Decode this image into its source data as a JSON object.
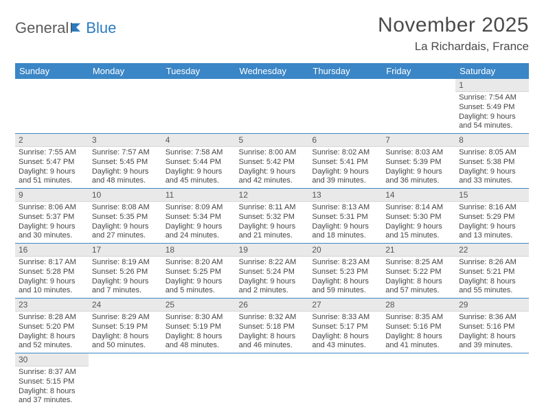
{
  "logo": {
    "text_general": "General",
    "text_blue": "Blue"
  },
  "title": "November 2025",
  "location": "La Richardais, France",
  "colors": {
    "header_bg": "#3b86c6",
    "header_text": "#ffffff",
    "daynum_bg": "#e9e9e9",
    "row_border": "#3b86c6",
    "logo_blue": "#2b7bbf",
    "text": "#3a3a3a"
  },
  "day_headers": [
    "Sunday",
    "Monday",
    "Tuesday",
    "Wednesday",
    "Thursday",
    "Friday",
    "Saturday"
  ],
  "weeks": [
    [
      {
        "empty": true
      },
      {
        "empty": true
      },
      {
        "empty": true
      },
      {
        "empty": true
      },
      {
        "empty": true
      },
      {
        "empty": true
      },
      {
        "n": "1",
        "sunrise": "Sunrise: 7:54 AM",
        "sunset": "Sunset: 5:49 PM",
        "daylight": "Daylight: 9 hours and 54 minutes."
      }
    ],
    [
      {
        "n": "2",
        "sunrise": "Sunrise: 7:55 AM",
        "sunset": "Sunset: 5:47 PM",
        "daylight": "Daylight: 9 hours and 51 minutes."
      },
      {
        "n": "3",
        "sunrise": "Sunrise: 7:57 AM",
        "sunset": "Sunset: 5:45 PM",
        "daylight": "Daylight: 9 hours and 48 minutes."
      },
      {
        "n": "4",
        "sunrise": "Sunrise: 7:58 AM",
        "sunset": "Sunset: 5:44 PM",
        "daylight": "Daylight: 9 hours and 45 minutes."
      },
      {
        "n": "5",
        "sunrise": "Sunrise: 8:00 AM",
        "sunset": "Sunset: 5:42 PM",
        "daylight": "Daylight: 9 hours and 42 minutes."
      },
      {
        "n": "6",
        "sunrise": "Sunrise: 8:02 AM",
        "sunset": "Sunset: 5:41 PM",
        "daylight": "Daylight: 9 hours and 39 minutes."
      },
      {
        "n": "7",
        "sunrise": "Sunrise: 8:03 AM",
        "sunset": "Sunset: 5:39 PM",
        "daylight": "Daylight: 9 hours and 36 minutes."
      },
      {
        "n": "8",
        "sunrise": "Sunrise: 8:05 AM",
        "sunset": "Sunset: 5:38 PM",
        "daylight": "Daylight: 9 hours and 33 minutes."
      }
    ],
    [
      {
        "n": "9",
        "sunrise": "Sunrise: 8:06 AM",
        "sunset": "Sunset: 5:37 PM",
        "daylight": "Daylight: 9 hours and 30 minutes."
      },
      {
        "n": "10",
        "sunrise": "Sunrise: 8:08 AM",
        "sunset": "Sunset: 5:35 PM",
        "daylight": "Daylight: 9 hours and 27 minutes."
      },
      {
        "n": "11",
        "sunrise": "Sunrise: 8:09 AM",
        "sunset": "Sunset: 5:34 PM",
        "daylight": "Daylight: 9 hours and 24 minutes."
      },
      {
        "n": "12",
        "sunrise": "Sunrise: 8:11 AM",
        "sunset": "Sunset: 5:32 PM",
        "daylight": "Daylight: 9 hours and 21 minutes."
      },
      {
        "n": "13",
        "sunrise": "Sunrise: 8:13 AM",
        "sunset": "Sunset: 5:31 PM",
        "daylight": "Daylight: 9 hours and 18 minutes."
      },
      {
        "n": "14",
        "sunrise": "Sunrise: 8:14 AM",
        "sunset": "Sunset: 5:30 PM",
        "daylight": "Daylight: 9 hours and 15 minutes."
      },
      {
        "n": "15",
        "sunrise": "Sunrise: 8:16 AM",
        "sunset": "Sunset: 5:29 PM",
        "daylight": "Daylight: 9 hours and 13 minutes."
      }
    ],
    [
      {
        "n": "16",
        "sunrise": "Sunrise: 8:17 AM",
        "sunset": "Sunset: 5:28 PM",
        "daylight": "Daylight: 9 hours and 10 minutes."
      },
      {
        "n": "17",
        "sunrise": "Sunrise: 8:19 AM",
        "sunset": "Sunset: 5:26 PM",
        "daylight": "Daylight: 9 hours and 7 minutes."
      },
      {
        "n": "18",
        "sunrise": "Sunrise: 8:20 AM",
        "sunset": "Sunset: 5:25 PM",
        "daylight": "Daylight: 9 hours and 5 minutes."
      },
      {
        "n": "19",
        "sunrise": "Sunrise: 8:22 AM",
        "sunset": "Sunset: 5:24 PM",
        "daylight": "Daylight: 9 hours and 2 minutes."
      },
      {
        "n": "20",
        "sunrise": "Sunrise: 8:23 AM",
        "sunset": "Sunset: 5:23 PM",
        "daylight": "Daylight: 8 hours and 59 minutes."
      },
      {
        "n": "21",
        "sunrise": "Sunrise: 8:25 AM",
        "sunset": "Sunset: 5:22 PM",
        "daylight": "Daylight: 8 hours and 57 minutes."
      },
      {
        "n": "22",
        "sunrise": "Sunrise: 8:26 AM",
        "sunset": "Sunset: 5:21 PM",
        "daylight": "Daylight: 8 hours and 55 minutes."
      }
    ],
    [
      {
        "n": "23",
        "sunrise": "Sunrise: 8:28 AM",
        "sunset": "Sunset: 5:20 PM",
        "daylight": "Daylight: 8 hours and 52 minutes."
      },
      {
        "n": "24",
        "sunrise": "Sunrise: 8:29 AM",
        "sunset": "Sunset: 5:19 PM",
        "daylight": "Daylight: 8 hours and 50 minutes."
      },
      {
        "n": "25",
        "sunrise": "Sunrise: 8:30 AM",
        "sunset": "Sunset: 5:19 PM",
        "daylight": "Daylight: 8 hours and 48 minutes."
      },
      {
        "n": "26",
        "sunrise": "Sunrise: 8:32 AM",
        "sunset": "Sunset: 5:18 PM",
        "daylight": "Daylight: 8 hours and 46 minutes."
      },
      {
        "n": "27",
        "sunrise": "Sunrise: 8:33 AM",
        "sunset": "Sunset: 5:17 PM",
        "daylight": "Daylight: 8 hours and 43 minutes."
      },
      {
        "n": "28",
        "sunrise": "Sunrise: 8:35 AM",
        "sunset": "Sunset: 5:16 PM",
        "daylight": "Daylight: 8 hours and 41 minutes."
      },
      {
        "n": "29",
        "sunrise": "Sunrise: 8:36 AM",
        "sunset": "Sunset: 5:16 PM",
        "daylight": "Daylight: 8 hours and 39 minutes."
      }
    ],
    [
      {
        "n": "30",
        "sunrise": "Sunrise: 8:37 AM",
        "sunset": "Sunset: 5:15 PM",
        "daylight": "Daylight: 8 hours and 37 minutes."
      },
      {
        "empty": true
      },
      {
        "empty": true
      },
      {
        "empty": true
      },
      {
        "empty": true
      },
      {
        "empty": true
      },
      {
        "empty": true
      }
    ]
  ]
}
